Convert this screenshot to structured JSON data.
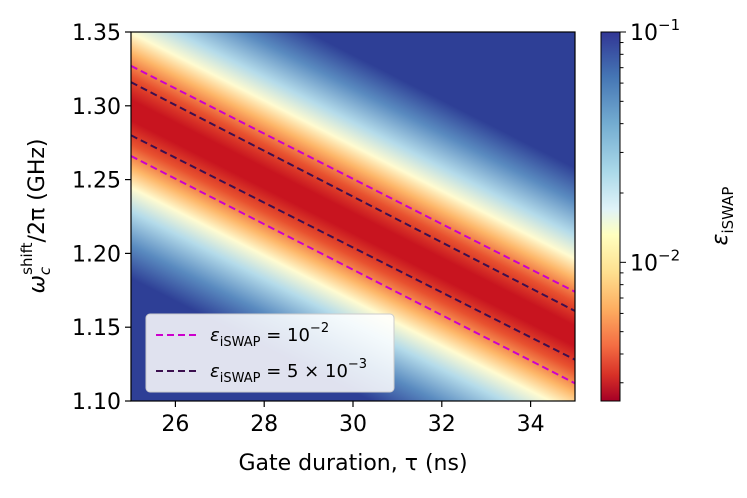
{
  "chart_data": {
    "type": "heatmap",
    "title": "",
    "xlabel": "Gate duration, τ (ns)",
    "ylabel": "ω_c^shift/2π (GHz)",
    "ylabel_parts": {
      "omega": "ω",
      "sub": "c",
      "sup": "shift",
      "rest": "/2π (GHz)"
    },
    "xlim": [
      25,
      35
    ],
    "ylim": [
      1.1,
      1.35
    ],
    "xticks": [
      26,
      28,
      30,
      32,
      34
    ],
    "yticks": [
      1.1,
      1.15,
      1.2,
      1.25,
      1.3,
      1.35
    ],
    "xtick_labels": [
      "26",
      "28",
      "30",
      "32",
      "34"
    ],
    "ytick_labels": [
      "1.10",
      "1.15",
      "1.20",
      "1.25",
      "1.30",
      "1.35"
    ],
    "colormap": "RdYlBu",
    "colorbar": {
      "label_main": "ε",
      "label_sub": "iSWAP",
      "scale": "log",
      "range": [
        0.0025,
        0.1
      ],
      "major_ticks": [
        {
          "value": 0.1,
          "base": "10",
          "exp": "−1"
        },
        {
          "value": 0.01,
          "base": "10",
          "exp": "−2"
        }
      ]
    },
    "optimal_ridge": {
      "x": [
        25,
        35
      ],
      "y": [
        1.297,
        1.144
      ]
    },
    "series": [
      {
        "name": "ε_iSWAP = 10^−2",
        "label_main": "ε",
        "label_sub": "iSWAP",
        "label_eq": " = 10",
        "label_exp": "−2",
        "color": "#cc00cc",
        "style": "dashed",
        "lines": [
          {
            "x": [
              25,
              35
            ],
            "y": [
              1.327,
              1.174
            ]
          },
          {
            "x": [
              25,
              35
            ],
            "y": [
              1.266,
              1.112
            ]
          }
        ]
      },
      {
        "name": "ε_iSWAP = 5 × 10^−3",
        "label_main": "ε",
        "label_sub": "iSWAP",
        "label_eq": " = 5 × 10",
        "label_exp": "−3",
        "color": "#3b0f4f",
        "style": "dashed",
        "lines": [
          {
            "x": [
              25,
              35
            ],
            "y": [
              1.316,
              1.161
            ]
          },
          {
            "x": [
              25,
              35
            ],
            "y": [
              1.28,
              1.128
            ]
          }
        ]
      }
    ],
    "legend_position": "lower-left"
  }
}
